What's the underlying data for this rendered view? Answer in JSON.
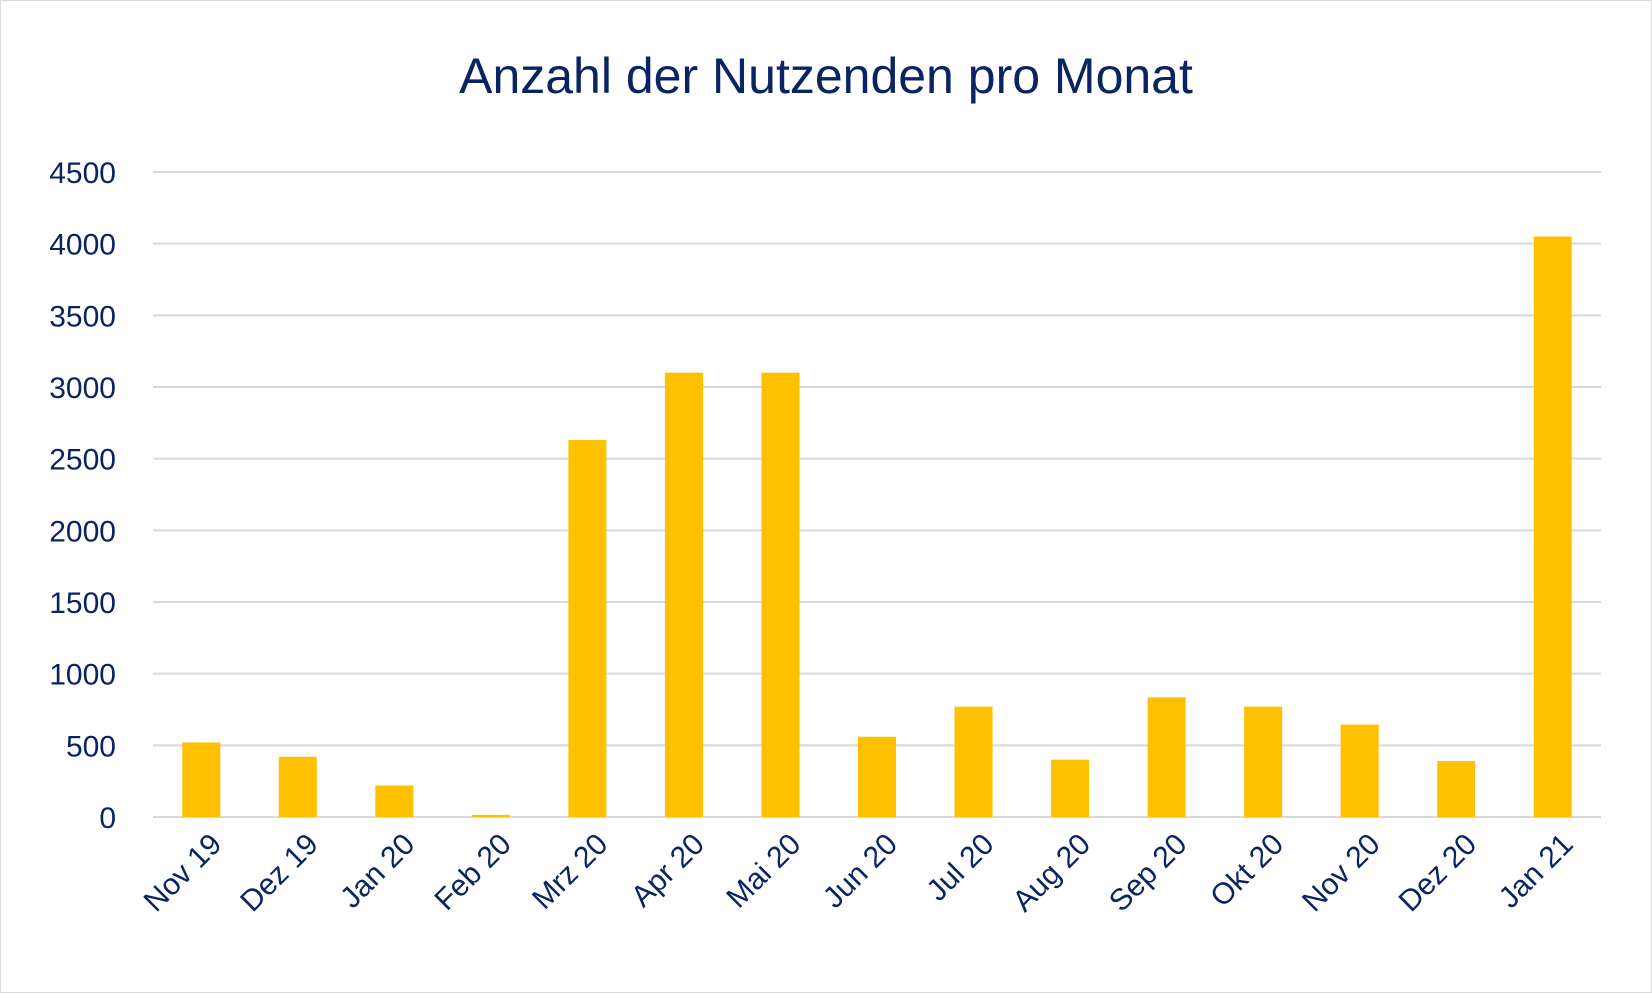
{
  "chart_data": {
    "type": "bar",
    "title": "Anzahl der Nutzenden pro Monat",
    "xlabel": "",
    "ylabel": "",
    "categories": [
      "Nov 19",
      "Dez 19",
      "Jan 20",
      "Feb 20",
      "Mrz 20",
      "Apr 20",
      "Mai 20",
      "Jun 20",
      "Jul 20",
      "Aug 20",
      "Sep 20",
      "Okt 20",
      "Nov 20",
      "Dez 20",
      "Jan 21"
    ],
    "values": [
      520,
      420,
      220,
      15,
      2630,
      3100,
      3100,
      560,
      770,
      400,
      835,
      770,
      645,
      390,
      4050
    ],
    "ylim": [
      0,
      4500
    ],
    "yticks": [
      "0",
      "500",
      "1000",
      "1500",
      "2000",
      "2500",
      "3000",
      "3500",
      "4000",
      "4500"
    ],
    "grid": true,
    "legend": "none",
    "bar_color": "#ffc000",
    "text_color": "#0a2463",
    "grid_color": "#d9d9d9"
  }
}
